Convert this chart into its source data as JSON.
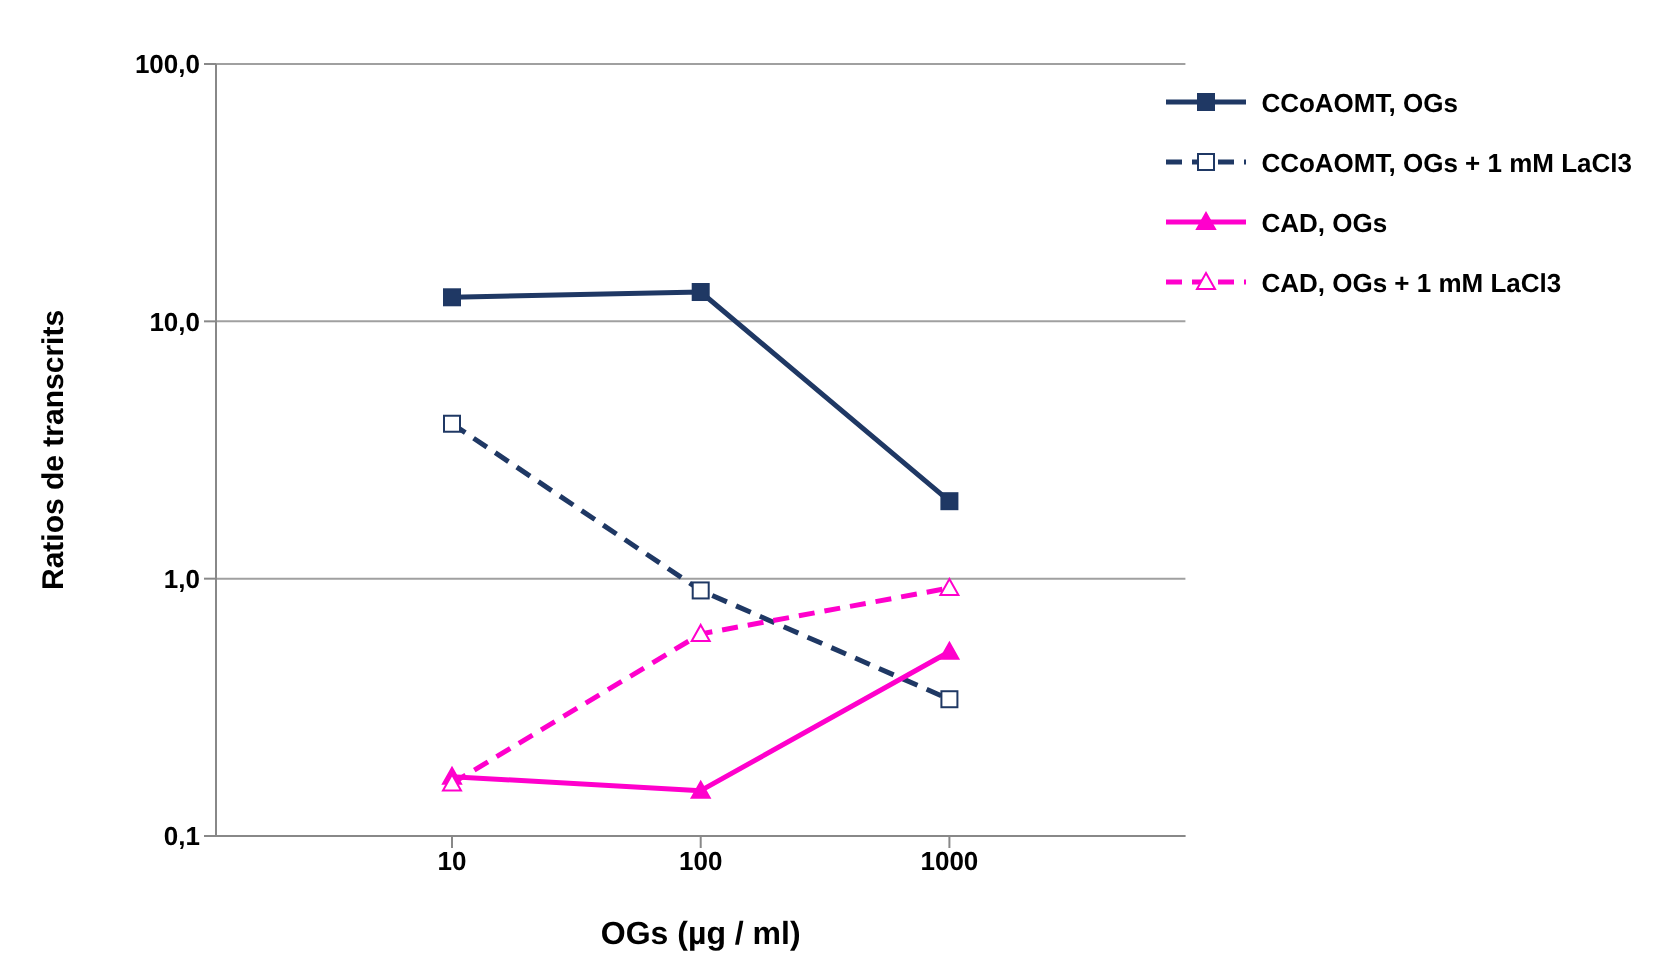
{
  "chart_data": {
    "type": "line",
    "xlabel": "OGs (µg / ml)",
    "ylabel": "Ratios de transcrits",
    "categories": [
      "10",
      "100",
      "1000"
    ],
    "series": [
      {
        "name": "CCoAOMT, OGs",
        "color": "#1f3864",
        "values": [
          12.4,
          13.0,
          2.0
        ],
        "marker": "square",
        "line_style": "solid"
      },
      {
        "name": "CCoAOMT, OGs + 1 mM LaCl3",
        "color": "#1f3864",
        "values": [
          4.0,
          0.9,
          0.34
        ],
        "marker": "square",
        "line_style": "dashed"
      },
      {
        "name": "CAD, OGs",
        "color": "#ff00cc",
        "values": [
          0.17,
          0.15,
          0.52
        ],
        "marker": "triangle",
        "line_style": "solid"
      },
      {
        "name": "CAD, OGs + 1 mM LaCl3",
        "color": "#ff00cc",
        "values": [
          0.16,
          0.61,
          0.92
        ],
        "marker": "triangle",
        "line_style": "dashed"
      }
    ],
    "log": true,
    "ylim": [
      0.1,
      100
    ],
    "yticks": [
      {
        "value": 0.1,
        "label": "0,1"
      },
      {
        "value": 1,
        "label": "1,0"
      },
      {
        "value": 10,
        "label": "10,0"
      },
      {
        "value": 100,
        "label": "100,0"
      }
    ],
    "grid": "y",
    "legend": "top right"
  }
}
